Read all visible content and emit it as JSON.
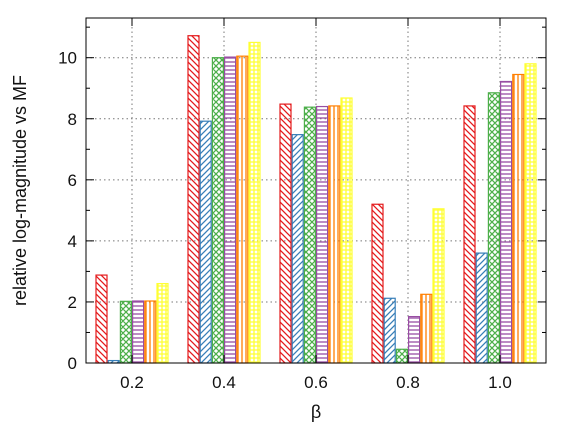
{
  "chart_data": {
    "type": "bar",
    "xlabel": "β",
    "ylabel": "relative log-magnitude vs MF",
    "categories": [
      "0.2",
      "0.4",
      "0.6",
      "0.8",
      "1.0"
    ],
    "ylim": [
      0,
      11.3
    ],
    "yticks": [
      "0",
      "2",
      "4",
      "6",
      "8",
      "10"
    ],
    "grid": true,
    "legend": "none",
    "series": [
      {
        "color": "#e41a1c",
        "pattern": "diagonal-down",
        "values": [
          2.88,
          10.72,
          8.48,
          5.2,
          8.42
        ]
      },
      {
        "color": "#377eb8",
        "pattern": "diagonal-up",
        "values": [
          0.08,
          7.92,
          7.48,
          2.12,
          3.6
        ]
      },
      {
        "color": "#4daf4a",
        "pattern": "crosshatch",
        "values": [
          2.02,
          10.0,
          8.38,
          0.45,
          8.85
        ]
      },
      {
        "color": "#984ea3",
        "pattern": "horizontal",
        "values": [
          2.03,
          10.02,
          8.4,
          1.52,
          9.22
        ]
      },
      {
        "color": "#ff7f00",
        "pattern": "vertical",
        "values": [
          2.03,
          10.05,
          8.42,
          2.25,
          9.45
        ]
      },
      {
        "color": "#ffff33",
        "pattern": "grid",
        "values": [
          2.6,
          10.5,
          8.68,
          5.05,
          9.8
        ]
      }
    ]
  }
}
